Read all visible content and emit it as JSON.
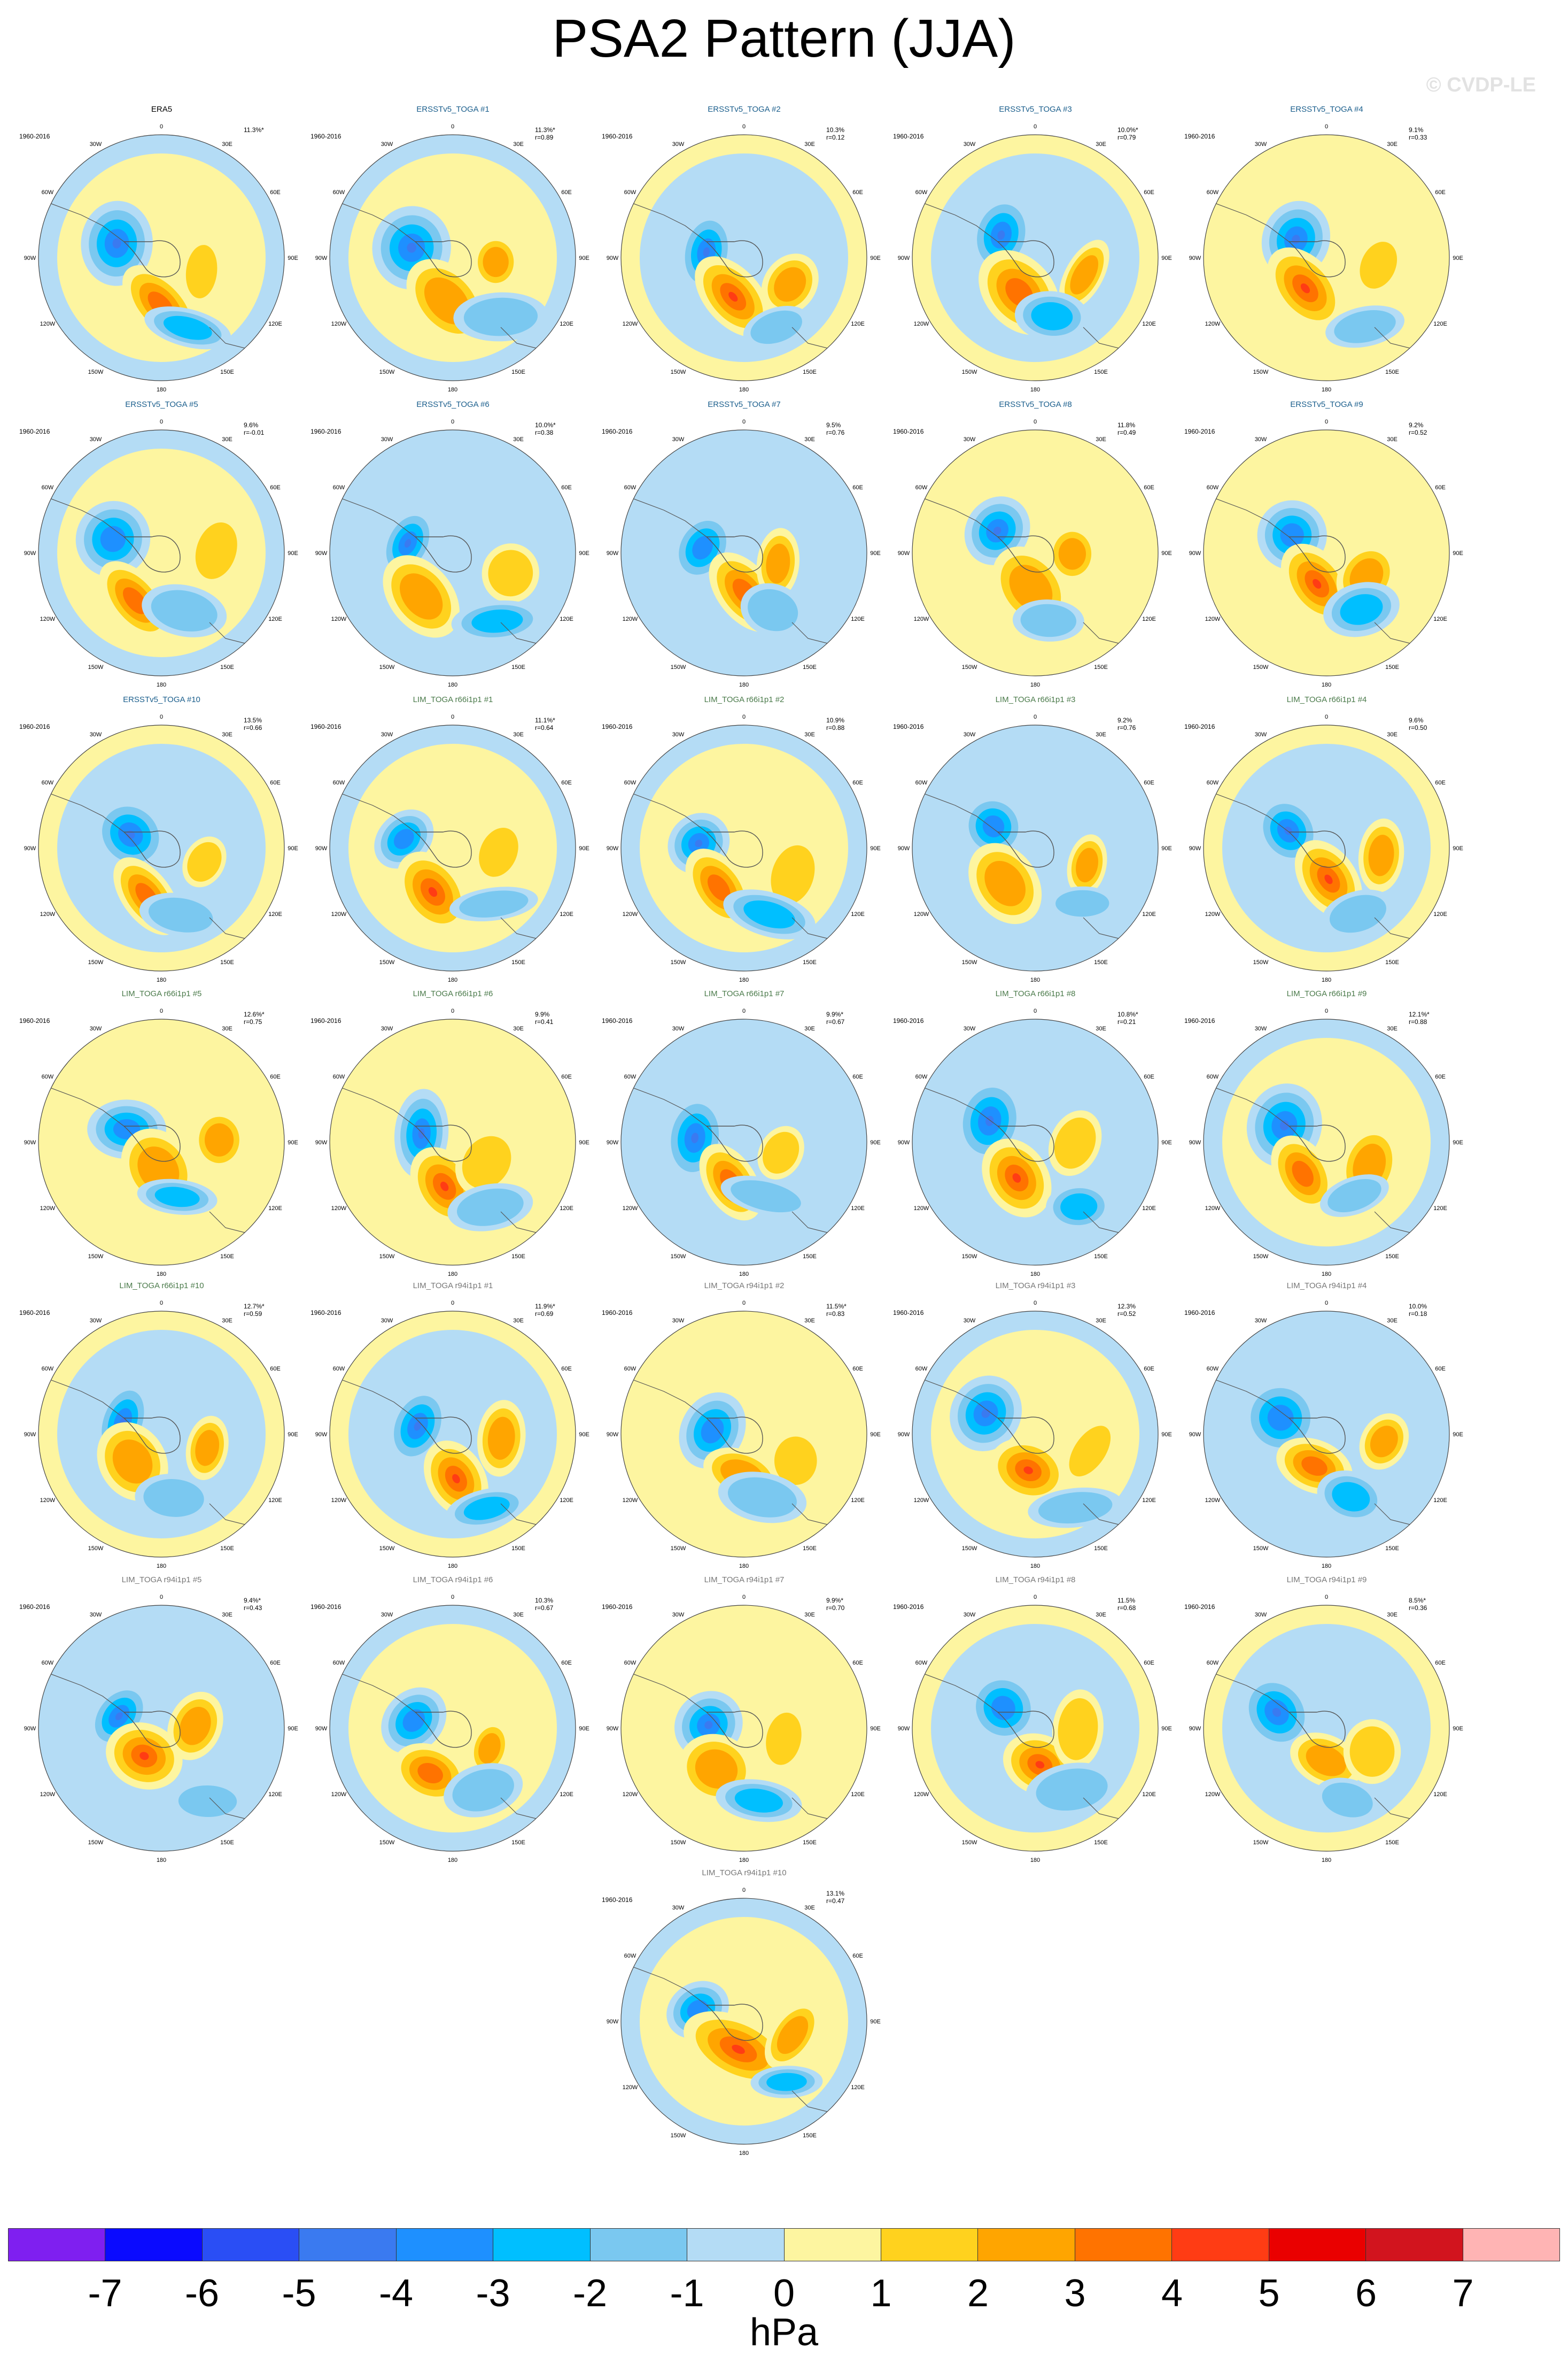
{
  "title": "PSA2 Pattern (JJA)",
  "watermark": "© CVDP-LE",
  "years": "1960-2016",
  "lon_labels": [
    "0",
    "30E",
    "60E",
    "90E",
    "120E",
    "150E",
    "180",
    "150W",
    "120W",
    "90W",
    "60W",
    "30W"
  ],
  "colors": {
    "title_obs": "#000000",
    "title_ersst": "#1a5e8c",
    "title_lim66": "#4a7a4a",
    "title_lim94": "#777777",
    "levels": [
      "#7f1ff0",
      "#0a0aff",
      "#2a4ef5",
      "#3a7af0",
      "#1e90ff",
      "#00bfff",
      "#7ac8f0",
      "#b4dcf5",
      "#fdf5a0",
      "#ffd21e",
      "#ffa500",
      "#ff7300",
      "#ff3c14",
      "#ea0000",
      "#d2141e",
      "#ffb4b4"
    ]
  },
  "colorbar": {
    "ticks": [
      "-7",
      "-6",
      "-5",
      "-4",
      "-3",
      "-2",
      "-1",
      "0",
      "1",
      "2",
      "3",
      "4",
      "5",
      "6",
      "7"
    ],
    "unit": "hPa"
  },
  "panels": [
    {
      "title": "ERA5",
      "group": "obs",
      "pct": "11.3%*",
      "r": ""
    },
    {
      "title": "ERSSTv5_TOGA #1",
      "group": "ersst",
      "pct": "11.3%*",
      "r": "r=0.89"
    },
    {
      "title": "ERSSTv5_TOGA #2",
      "group": "ersst",
      "pct": "10.3%",
      "r": "r=0.12"
    },
    {
      "title": "ERSSTv5_TOGA #3",
      "group": "ersst",
      "pct": "10.0%*",
      "r": "r=0.79"
    },
    {
      "title": "ERSSTv5_TOGA #4",
      "group": "ersst",
      "pct": "9.1%",
      "r": "r=0.33"
    },
    {
      "title": "ERSSTv5_TOGA #5",
      "group": "ersst",
      "pct": "9.6%",
      "r": "r=-0.01"
    },
    {
      "title": "ERSSTv5_TOGA #6",
      "group": "ersst",
      "pct": "10.0%*",
      "r": "r=0.38"
    },
    {
      "title": "ERSSTv5_TOGA #7",
      "group": "ersst",
      "pct": "9.5%",
      "r": "r=0.76"
    },
    {
      "title": "ERSSTv5_TOGA #8",
      "group": "ersst",
      "pct": "11.8%",
      "r": "r=0.49"
    },
    {
      "title": "ERSSTv5_TOGA #9",
      "group": "ersst",
      "pct": "9.2%",
      "r": "r=0.52"
    },
    {
      "title": "ERSSTv5_TOGA #10",
      "group": "ersst",
      "pct": "13.5%",
      "r": "r=0.66"
    },
    {
      "title": "LIM_TOGA r66i1p1 #1",
      "group": "lim66",
      "pct": "11.1%*",
      "r": "r=0.64"
    },
    {
      "title": "LIM_TOGA r66i1p1 #2",
      "group": "lim66",
      "pct": "10.9%",
      "r": "r=0.88"
    },
    {
      "title": "LIM_TOGA r66i1p1 #3",
      "group": "lim66",
      "pct": "9.2%",
      "r": "r=0.76"
    },
    {
      "title": "LIM_TOGA r66i1p1 #4",
      "group": "lim66",
      "pct": "9.6%",
      "r": "r=0.50"
    },
    {
      "title": "LIM_TOGA r66i1p1 #5",
      "group": "lim66",
      "pct": "12.6%*",
      "r": "r=0.75"
    },
    {
      "title": "LIM_TOGA r66i1p1 #6",
      "group": "lim66",
      "pct": "9.9%",
      "r": "r=0.41"
    },
    {
      "title": "LIM_TOGA r66i1p1 #7",
      "group": "lim66",
      "pct": "9.9%*",
      "r": "r=0.67"
    },
    {
      "title": "LIM_TOGA r66i1p1 #8",
      "group": "lim66",
      "pct": "10.8%*",
      "r": "r=0.21"
    },
    {
      "title": "LIM_TOGA r66i1p1 #9",
      "group": "lim66",
      "pct": "12.1%*",
      "r": "r=0.88"
    },
    {
      "title": "LIM_TOGA r66i1p1 #10",
      "group": "lim66",
      "pct": "12.7%*",
      "r": "r=0.59"
    },
    {
      "title": "LIM_TOGA r94i1p1 #1",
      "group": "lim94",
      "pct": "11.9%*",
      "r": "r=0.69"
    },
    {
      "title": "LIM_TOGA r94i1p1 #2",
      "group": "lim94",
      "pct": "11.5%*",
      "r": "r=0.83"
    },
    {
      "title": "LIM_TOGA r94i1p1 #3",
      "group": "lim94",
      "pct": "12.3%",
      "r": "r=0.52"
    },
    {
      "title": "LIM_TOGA r94i1p1 #4",
      "group": "lim94",
      "pct": "10.0%",
      "r": "r=0.18"
    },
    {
      "title": "LIM_TOGA r94i1p1 #5",
      "group": "lim94",
      "pct": "9.4%*",
      "r": "r=0.43"
    },
    {
      "title": "LIM_TOGA r94i1p1 #6",
      "group": "lim94",
      "pct": "10.3%",
      "r": "r=0.67"
    },
    {
      "title": "LIM_TOGA r94i1p1 #7",
      "group": "lim94",
      "pct": "9.9%*",
      "r": "r=0.70"
    },
    {
      "title": "LIM_TOGA r94i1p1 #8",
      "group": "lim94",
      "pct": "11.5%",
      "r": "r=0.68"
    },
    {
      "title": "LIM_TOGA r94i1p1 #9",
      "group": "lim94",
      "pct": "8.5%*",
      "r": "r=0.36"
    },
    {
      "title": "LIM_TOGA r94i1p1 #10",
      "group": "lim94",
      "pct": "13.1%",
      "r": "r=0.47"
    }
  ]
}
